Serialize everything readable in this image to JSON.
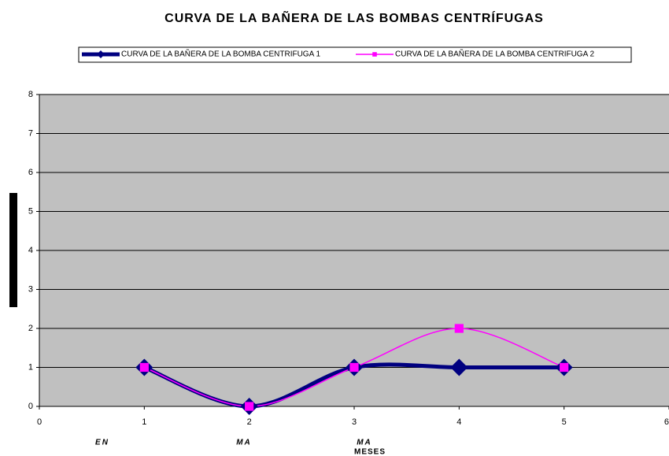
{
  "chart_data": {
    "type": "line",
    "title": "CURVA DE LA BAÑERA DE LAS BOMBAS CENTRÍFUGAS",
    "x": [
      1,
      2,
      3,
      4,
      5
    ],
    "series": [
      {
        "name": "CURVA DE LA BAÑERA DE LA BOMBA CENTRIFUGA 1",
        "color": "#000080",
        "marker": "diamond",
        "values": [
          1,
          0,
          1,
          1,
          1
        ]
      },
      {
        "name": "CURVA DE LA BAÑERA DE LA BOMBA CENTRIFUGA 2",
        "color": "#ff00ff",
        "marker": "square",
        "values": [
          1,
          0,
          1,
          2,
          1
        ]
      }
    ],
    "xlim": [
      0,
      6
    ],
    "xticks": [
      0,
      1,
      2,
      3,
      4,
      5,
      6
    ],
    "ylim": [
      0,
      8
    ],
    "yticks": [
      0,
      1,
      2,
      3,
      4,
      5,
      6,
      7,
      8
    ],
    "x_label": "MESES",
    "category_labels": [
      "EN",
      "MA",
      "MA"
    ],
    "grid": true,
    "smooth": true,
    "legend": "top"
  }
}
